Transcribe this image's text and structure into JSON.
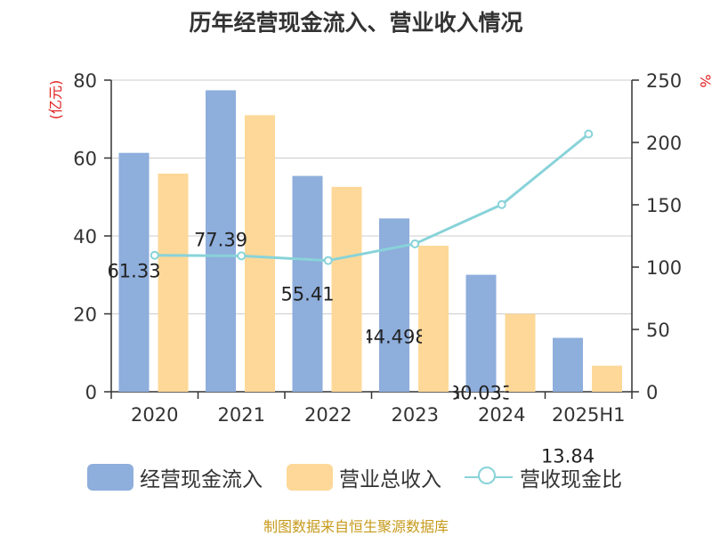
{
  "title": "历年经营现金流入、营业收入情况",
  "source": "制图数据来自恒生聚源数据库",
  "chart_data": {
    "type": "bar",
    "categories": [
      "2020",
      "2021",
      "2022",
      "2023",
      "2024",
      "2025H1"
    ],
    "y_left": {
      "unit": "(亿元)",
      "ylim": [
        0,
        80
      ],
      "ticks": [
        "0",
        "20",
        "40",
        "60",
        "80"
      ]
    },
    "y_right": {
      "unit": "%",
      "ylim": [
        0,
        250
      ],
      "ticks": [
        "0",
        "50",
        "100",
        "150",
        "200",
        "250"
      ]
    },
    "grid": true,
    "legend_position": "bottom",
    "series": [
      {
        "name": "经营现金流入",
        "type": "bar",
        "axis": "left",
        "color": "#8eaedc",
        "values": [
          61.33,
          77.39,
          55.41,
          44.498,
          30.033,
          13.84
        ],
        "labels": [
          "61.33",
          "77.39",
          "55.41",
          "44.498",
          "30.033",
          "13.84"
        ]
      },
      {
        "name": "营业总收入",
        "type": "bar",
        "axis": "left",
        "color": "#fdd898",
        "values": [
          56.0,
          71.0,
          52.6,
          37.5,
          20.0,
          6.7
        ]
      },
      {
        "name": "营收现金比",
        "type": "line",
        "axis": "right",
        "color": "#88d3d9",
        "values": [
          109.5,
          109.0,
          105.3,
          118.7,
          150.2,
          206.8
        ]
      }
    ]
  }
}
